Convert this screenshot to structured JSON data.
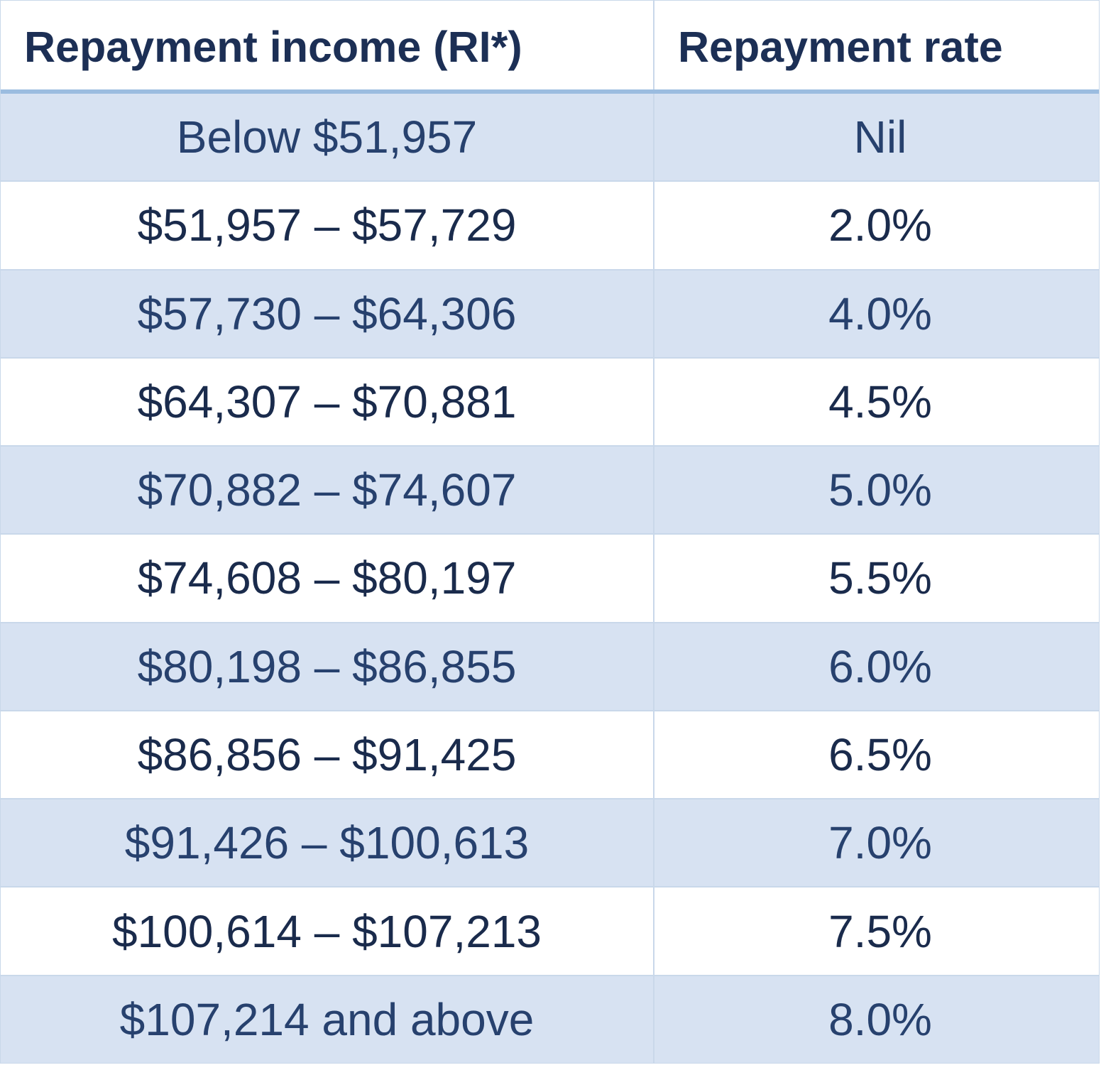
{
  "table": {
    "headers": {
      "income": "Repayment income (RI*)",
      "rate": "Repayment rate"
    },
    "rows": [
      {
        "income": "Below $51,957",
        "rate": "Nil"
      },
      {
        "income": "$51,957 – $57,729",
        "rate": "2.0%"
      },
      {
        "income": "$57,730 – $64,306",
        "rate": "4.0%"
      },
      {
        "income": "$64,307 – $70,881",
        "rate": "4.5%"
      },
      {
        "income": "$70,882 – $74,607",
        "rate": "5.0%"
      },
      {
        "income": "$74,608 – $80,197",
        "rate": "5.5%"
      },
      {
        "income": "$80,198 – $86,855",
        "rate": "6.0%"
      },
      {
        "income": "$86,856 – $91,425",
        "rate": "6.5%"
      },
      {
        "income": "$91,426 – $100,613",
        "rate": "7.0%"
      },
      {
        "income": "$100,614 – $107,213",
        "rate": "7.5%"
      },
      {
        "income": "$107,214 and above",
        "rate": "8.0%"
      }
    ]
  },
  "colors": {
    "shaded_row": "#d7e2f2",
    "header_rule": "#9bbce0",
    "text": "#1f3560"
  }
}
